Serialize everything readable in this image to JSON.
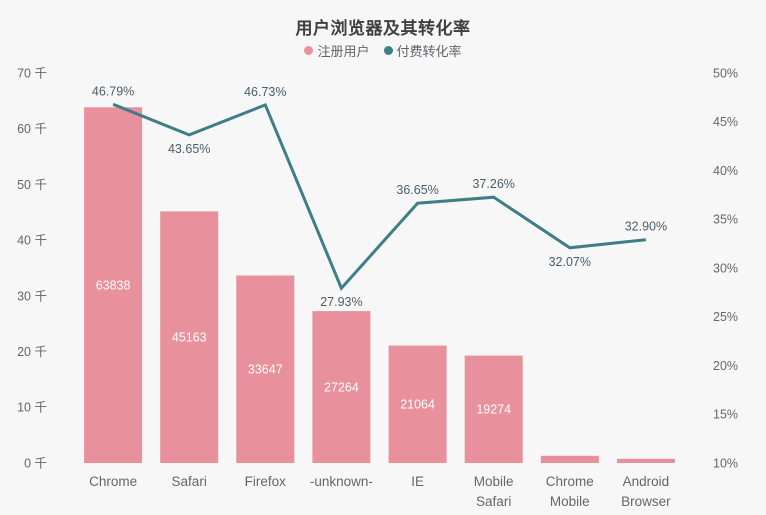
{
  "title": "用户浏览器及其转化率",
  "legend": [
    {
      "label": "注册用户",
      "color": "#e8909b"
    },
    {
      "label": "付费转化率",
      "color": "#3e7e87"
    }
  ],
  "chart_data": {
    "type": "combo-bar-line",
    "title": "用户浏览器及其转化率",
    "categories": [
      "Chrome",
      "Safari",
      "Firefox",
      "-unknown-",
      "IE",
      "Mobile Safari",
      "Chrome Mobile",
      "Android Browser"
    ],
    "series": [
      {
        "name": "注册用户",
        "type": "bar",
        "yaxis": "left",
        "color": "#e8909b",
        "values": [
          63838,
          45163,
          33647,
          27264,
          21064,
          19274,
          1300,
          750
        ],
        "data_labels": [
          "63838",
          "45163",
          "33647",
          "27264",
          "21064",
          "19274",
          "",
          ""
        ]
      },
      {
        "name": "付费转化率",
        "type": "line",
        "yaxis": "right",
        "color": "#3e7e87",
        "values": [
          46.79,
          43.65,
          46.73,
          27.93,
          36.65,
          37.26,
          32.07,
          32.9
        ],
        "data_labels": [
          "46.79%",
          "43.65%",
          "46.73%",
          "27.93%",
          "36.65%",
          "37.26%",
          "32.07%",
          "32.90%"
        ],
        "label_positions": [
          "top",
          "bottom",
          "top",
          "bottom",
          "top",
          "top",
          "bottom",
          "top"
        ]
      }
    ],
    "left_axis": {
      "min": 0,
      "max": 70000,
      "unit": "千",
      "tick_labels_top_to_bottom": [
        "70 千",
        "60 千",
        "50 千",
        "40 千",
        "30 千",
        "20 千",
        "10 千",
        "0 千"
      ]
    },
    "right_axis": {
      "min": 10,
      "max": 50,
      "tick_labels_top_to_bottom": [
        "50%",
        "45%",
        "40%",
        "35%",
        "30%",
        "25%",
        "20%",
        "15%",
        "10%"
      ]
    },
    "grid": false,
    "legend_position": "top-center"
  },
  "colors": {
    "background": "#f7f7f7",
    "axis_label": "#666666",
    "bar_value_label": "#ffffff",
    "line_value_label": "#4d5c66",
    "title": "#3f3f3f"
  }
}
